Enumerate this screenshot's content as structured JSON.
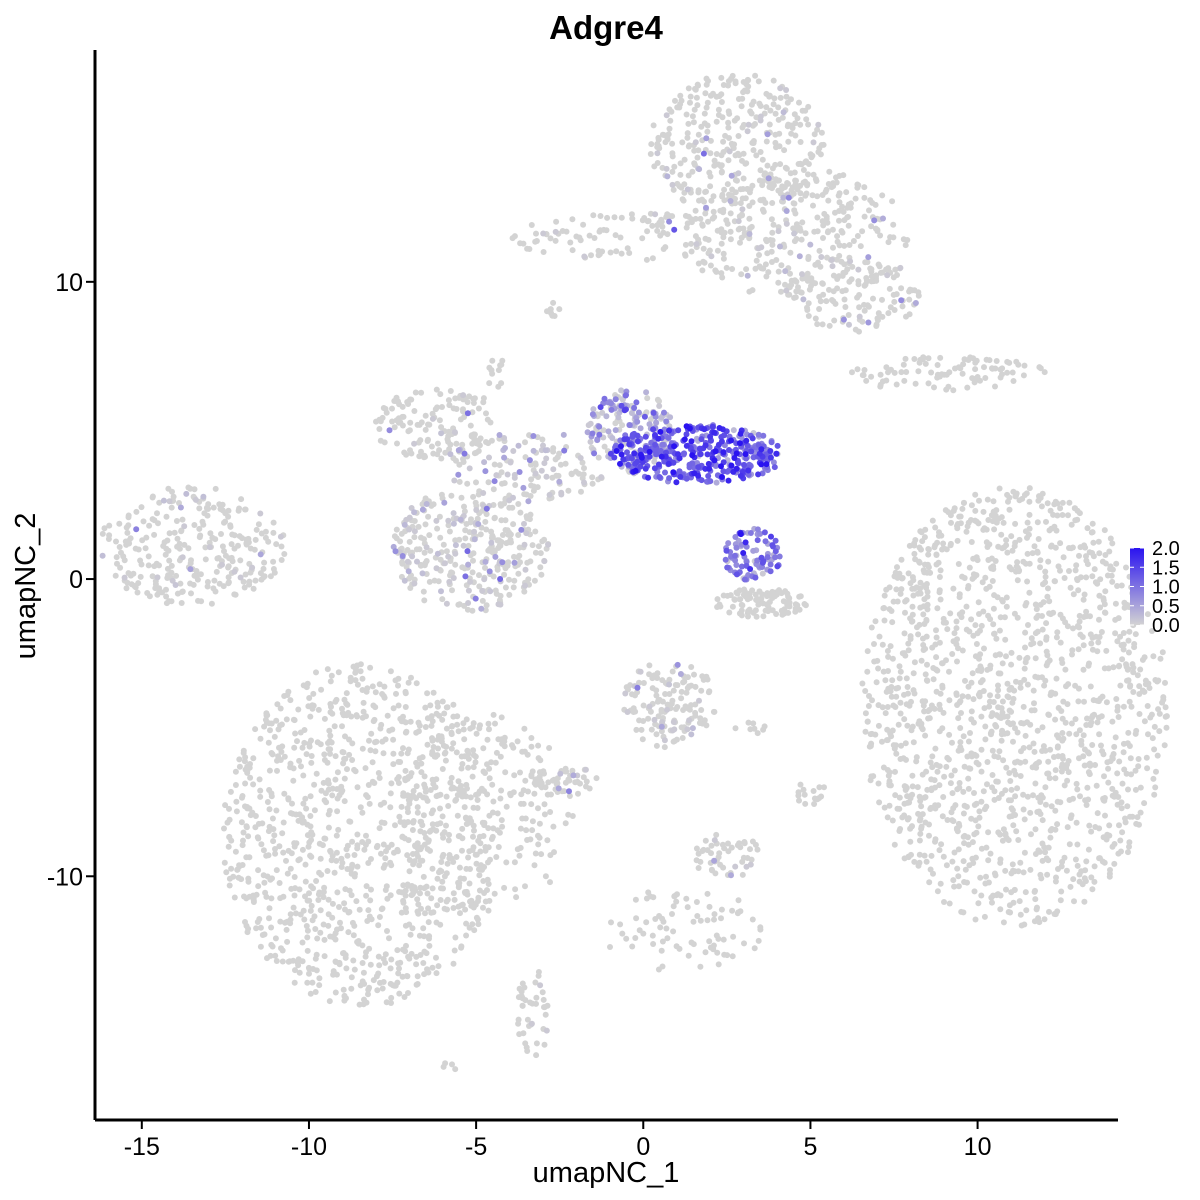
{
  "chart_data": {
    "type": "scatter",
    "title": "Adgre4",
    "xlabel": "umapNC_1",
    "ylabel": "umapNC_2",
    "xlim": [
      -16.4,
      14.2
    ],
    "ylim": [
      -18.2,
      17.8
    ],
    "xticks": [
      -15,
      -10,
      -5,
      0,
      5,
      10
    ],
    "xtick_labels": [
      "-15",
      "-10",
      "-5",
      "0",
      "5",
      "10"
    ],
    "yticks": [
      -10,
      0,
      10
    ],
    "ytick_labels": [
      "-10",
      "0",
      "10"
    ],
    "grid": false,
    "color_scale": {
      "low_color": "#d3d3d3",
      "high_color": "#2a13f0",
      "min": 0,
      "max": 2.0,
      "breaks": [
        0.0,
        0.5,
        1.0,
        1.5,
        2.0
      ],
      "break_labels": [
        "0.0",
        "0.5",
        "1.0",
        "1.5",
        "2.0"
      ]
    },
    "legend_position": "right",
    "point_radius": 3,
    "clusters": [
      {
        "cx": 11.1,
        "cy": -4.3,
        "rx": 4.6,
        "ry": 7.4,
        "n": 1400,
        "expr": 0.0
      },
      {
        "cx": -8.4,
        "cy": -8.6,
        "rx": 4.2,
        "ry": 5.8,
        "n": 1000,
        "expr": 0.0
      },
      {
        "cx": -4.7,
        "cy": -7.9,
        "rx": 2.6,
        "ry": 3.4,
        "n": 220,
        "expr": 0.0
      },
      {
        "cx": 2.8,
        "cy": 14.6,
        "rx": 2.6,
        "ry": 2.4,
        "n": 330,
        "expr": 0.02
      },
      {
        "cx": 4.6,
        "cy": 11.6,
        "rx": 3.4,
        "ry": 2.2,
        "n": 300,
        "expr": 0.02
      },
      {
        "cx": 6.3,
        "cy": 9.6,
        "rx": 2.0,
        "ry": 1.3,
        "n": 120,
        "expr": 0.03
      },
      {
        "cx": -0.2,
        "cy": 11.5,
        "rx": 3.8,
        "ry": 0.8,
        "n": 110,
        "expr": 0.05
      },
      {
        "cx": -13.5,
        "cy": 1.1,
        "rx": 2.8,
        "ry": 2.0,
        "n": 280,
        "expr": 0.03
      },
      {
        "cx": -5.2,
        "cy": 1.0,
        "rx": 2.4,
        "ry": 2.1,
        "n": 330,
        "expr": 0.12
      },
      {
        "cx": -6.1,
        "cy": 5.2,
        "rx": 2.0,
        "ry": 1.2,
        "n": 140,
        "expr": 0.05
      },
      {
        "cx": -3.5,
        "cy": 3.8,
        "rx": 2.4,
        "ry": 1.2,
        "n": 130,
        "expr": 0.2
      },
      {
        "cx": -0.4,
        "cy": 5.0,
        "rx": 1.3,
        "ry": 1.4,
        "n": 180,
        "expr": 0.45
      },
      {
        "cx": 1.6,
        "cy": 4.2,
        "rx": 2.6,
        "ry": 1.0,
        "n": 380,
        "expr": 1.2
      },
      {
        "cx": 3.3,
        "cy": 0.8,
        "rx": 0.9,
        "ry": 0.9,
        "n": 90,
        "expr": 0.9
      },
      {
        "cx": 3.5,
        "cy": -0.8,
        "rx": 1.4,
        "ry": 0.5,
        "n": 90,
        "expr": 0.0
      },
      {
        "cx": 0.8,
        "cy": -4.2,
        "rx": 1.4,
        "ry": 1.5,
        "n": 140,
        "expr": 0.05
      },
      {
        "cx": -2.3,
        "cy": -6.8,
        "rx": 1.0,
        "ry": 0.5,
        "n": 40,
        "expr": 0.12
      },
      {
        "cx": 2.5,
        "cy": -9.3,
        "rx": 1.0,
        "ry": 0.8,
        "n": 50,
        "expr": 0.03
      },
      {
        "cx": 1.2,
        "cy": -11.8,
        "rx": 2.5,
        "ry": 1.4,
        "n": 80,
        "expr": 0.0
      },
      {
        "cx": -3.3,
        "cy": -14.6,
        "rx": 0.5,
        "ry": 1.5,
        "n": 40,
        "expr": 0.02
      },
      {
        "cx": 9.2,
        "cy": 6.9,
        "rx": 3.0,
        "ry": 0.6,
        "n": 90,
        "expr": 0.0
      },
      {
        "cx": 8.3,
        "cy": -0.1,
        "rx": 0.3,
        "ry": 1.8,
        "n": 30,
        "expr": 0.0
      },
      {
        "cx": 5.0,
        "cy": -7.2,
        "rx": 0.5,
        "ry": 0.4,
        "n": 15,
        "expr": 0.0
      },
      {
        "cx": -4.4,
        "cy": 7.0,
        "rx": 0.3,
        "ry": 0.6,
        "n": 12,
        "expr": 0.0
      },
      {
        "cx": -2.7,
        "cy": 9.1,
        "rx": 0.2,
        "ry": 0.4,
        "n": 8,
        "expr": 0.0
      },
      {
        "cx": 3.2,
        "cy": -5.0,
        "rx": 0.6,
        "ry": 0.2,
        "n": 8,
        "expr": 0.0
      },
      {
        "cx": -5.8,
        "cy": -16.4,
        "rx": 0.2,
        "ry": 0.2,
        "n": 4,
        "expr": 0.0
      }
    ]
  }
}
